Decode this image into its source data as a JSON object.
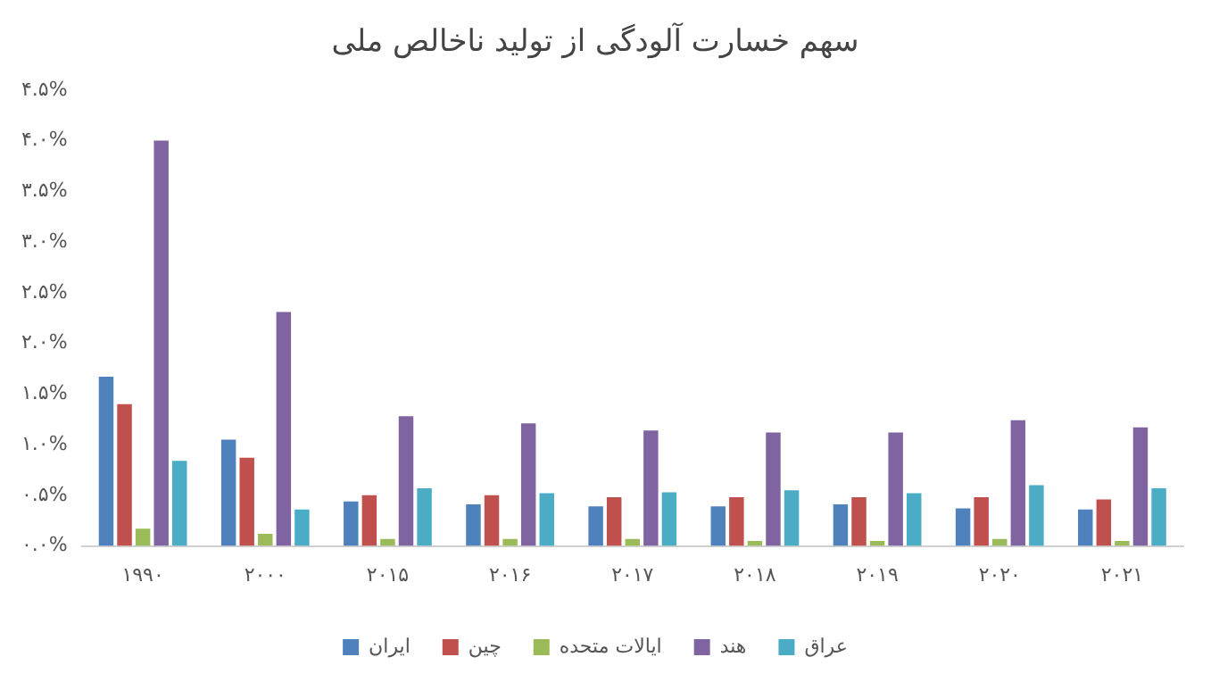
{
  "chart_data": {
    "type": "bar",
    "title": "سهم خسارت آلودگی از تولید ناخالص ملی",
    "categories": [
      "۱۹۹۰",
      "۲۰۰۰",
      "۲۰۱۵",
      "۲۰۱۶",
      "۲۰۱۷",
      "۲۰۱۸",
      "۲۰۱۹",
      "۲۰۲۰",
      "۲۰۲۱"
    ],
    "series": [
      {
        "name": "ایران",
        "color": "#4f81bd",
        "values": [
          1.67,
          1.05,
          0.44,
          0.41,
          0.39,
          0.39,
          0.41,
          0.37,
          0.36
        ]
      },
      {
        "name": "چین",
        "color": "#c0504d",
        "values": [
          1.4,
          0.87,
          0.5,
          0.5,
          0.48,
          0.48,
          0.48,
          0.48,
          0.46
        ]
      },
      {
        "name": "ایالات متحده",
        "color": "#9bbb59",
        "values": [
          0.17,
          0.12,
          0.07,
          0.07,
          0.07,
          0.05,
          0.05,
          0.07,
          0.05
        ]
      },
      {
        "name": "هند",
        "color": "#8064a2",
        "values": [
          4.0,
          2.31,
          1.28,
          1.21,
          1.14,
          1.12,
          1.12,
          1.24,
          1.17
        ]
      },
      {
        "name": "عراق",
        "color": "#4bacc6",
        "values": [
          0.84,
          0.36,
          0.57,
          0.52,
          0.53,
          0.55,
          0.52,
          0.6,
          0.57
        ]
      }
    ],
    "ylim": [
      0,
      4.5
    ],
    "yticks": [
      {
        "value": 0,
        "label": "۰.۰%"
      },
      {
        "value": 0.5,
        "label": "۰.۵%"
      },
      {
        "value": 1,
        "label": "۱.۰%"
      },
      {
        "value": 1.5,
        "label": "۱.۵%"
      },
      {
        "value": 2,
        "label": "۲.۰%"
      },
      {
        "value": 2.5,
        "label": "۲.۵%"
      },
      {
        "value": 3,
        "label": "۳.۰%"
      },
      {
        "value": 3.5,
        "label": "۳.۵%"
      },
      {
        "value": 4,
        "label": "۴.۰%"
      },
      {
        "value": 4.5,
        "label": "۴.۵%"
      }
    ],
    "grid": false,
    "legend": "bottom"
  }
}
